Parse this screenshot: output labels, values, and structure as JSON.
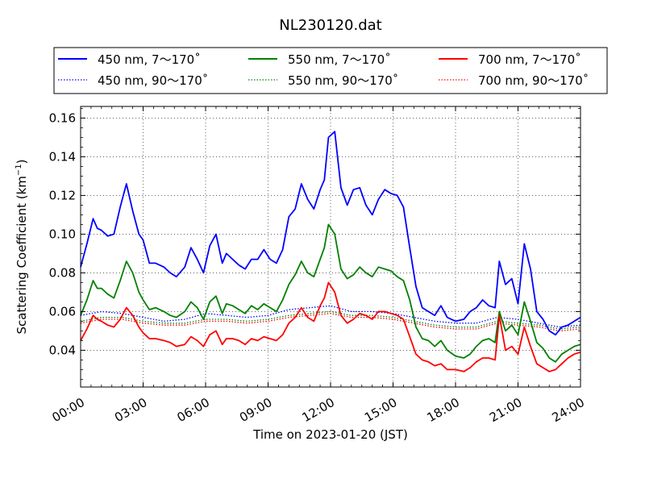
{
  "chart_data": {
    "type": "line",
    "title": "NL230120.dat",
    "xlabel": "Time on 2023-01-20 (JST)",
    "ylabel_main": "Scattering Coefficient (km",
    "ylabel_exp": "−1",
    "ylabel_close": ")",
    "xlim": [
      0,
      24
    ],
    "ylim": [
      0.021,
      0.166
    ],
    "x_ticks": [
      {
        "value": 0,
        "label": "00:00"
      },
      {
        "value": 3,
        "label": "03:00"
      },
      {
        "value": 6,
        "label": "06:00"
      },
      {
        "value": 9,
        "label": "09:00"
      },
      {
        "value": 12,
        "label": "12:00"
      },
      {
        "value": 15,
        "label": "15:00"
      },
      {
        "value": 18,
        "label": "18:00"
      },
      {
        "value": 21,
        "label": "21:00"
      },
      {
        "value": 24,
        "label": "24:00"
      }
    ],
    "y_ticks": [
      {
        "value": 0.04,
        "label": "0.04"
      },
      {
        "value": 0.06,
        "label": "0.06"
      },
      {
        "value": 0.08,
        "label": "0.08"
      },
      {
        "value": 0.1,
        "label": "0.10"
      },
      {
        "value": 0.12,
        "label": "0.12"
      },
      {
        "value": 0.14,
        "label": "0.14"
      },
      {
        "value": 0.16,
        "label": "0.16"
      }
    ],
    "grid": true,
    "legend_position": "top, above plot",
    "series": [
      {
        "name": "450 nm, 7～170˚",
        "color": "#0000ff",
        "style": "solid",
        "x": [
          0,
          0.3,
          0.6,
          0.8,
          1.0,
          1.3,
          1.6,
          1.9,
          2.2,
          2.5,
          2.8,
          3.0,
          3.3,
          3.6,
          4.0,
          4.3,
          4.6,
          5.0,
          5.3,
          5.6,
          5.9,
          6.2,
          6.5,
          6.8,
          7.0,
          7.3,
          7.6,
          7.9,
          8.2,
          8.5,
          8.8,
          9.1,
          9.4,
          9.7,
          10.0,
          10.3,
          10.6,
          10.9,
          11.2,
          11.5,
          11.7,
          11.9,
          12.2,
          12.5,
          12.8,
          13.1,
          13.4,
          13.7,
          14.0,
          14.3,
          14.6,
          14.9,
          15.2,
          15.5,
          15.8,
          16.1,
          16.4,
          16.7,
          17.0,
          17.3,
          17.6,
          18.0,
          18.4,
          18.7,
          19.0,
          19.3,
          19.6,
          19.9,
          20.1,
          20.4,
          20.7,
          21.0,
          21.3,
          21.6,
          21.9,
          22.2,
          22.5,
          22.8,
          23.1,
          23.4,
          23.7,
          24.0
        ],
        "y": [
          0.083,
          0.095,
          0.108,
          0.103,
          0.102,
          0.099,
          0.1,
          0.114,
          0.126,
          0.112,
          0.1,
          0.097,
          0.085,
          0.085,
          0.083,
          0.08,
          0.078,
          0.083,
          0.093,
          0.087,
          0.08,
          0.094,
          0.1,
          0.085,
          0.09,
          0.087,
          0.084,
          0.082,
          0.087,
          0.087,
          0.092,
          0.087,
          0.085,
          0.092,
          0.109,
          0.113,
          0.126,
          0.118,
          0.113,
          0.123,
          0.128,
          0.15,
          0.153,
          0.124,
          0.115,
          0.123,
          0.124,
          0.115,
          0.11,
          0.118,
          0.123,
          0.121,
          0.12,
          0.114,
          0.093,
          0.073,
          0.062,
          0.06,
          0.058,
          0.063,
          0.057,
          0.055,
          0.056,
          0.06,
          0.062,
          0.066,
          0.063,
          0.062,
          0.086,
          0.074,
          0.077,
          0.064,
          0.095,
          0.082,
          0.06,
          0.056,
          0.05,
          0.048,
          0.052,
          0.053,
          0.055,
          0.057
        ]
      },
      {
        "name": "550 nm, 7～170˚",
        "color": "#008000",
        "style": "solid",
        "x": [
          0,
          0.3,
          0.6,
          0.8,
          1.0,
          1.3,
          1.6,
          1.9,
          2.2,
          2.5,
          2.8,
          3.0,
          3.3,
          3.6,
          4.0,
          4.3,
          4.6,
          5.0,
          5.3,
          5.6,
          5.9,
          6.2,
          6.5,
          6.8,
          7.0,
          7.3,
          7.6,
          7.9,
          8.2,
          8.5,
          8.8,
          9.1,
          9.4,
          9.7,
          10.0,
          10.3,
          10.6,
          10.9,
          11.2,
          11.5,
          11.7,
          11.9,
          12.2,
          12.5,
          12.8,
          13.1,
          13.4,
          13.7,
          14.0,
          14.3,
          14.6,
          14.9,
          15.2,
          15.5,
          15.8,
          16.1,
          16.4,
          16.7,
          17.0,
          17.3,
          17.6,
          18.0,
          18.4,
          18.7,
          19.0,
          19.3,
          19.6,
          19.9,
          20.1,
          20.4,
          20.7,
          21.0,
          21.3,
          21.6,
          21.9,
          22.2,
          22.5,
          22.8,
          23.1,
          23.4,
          23.7,
          24.0
        ],
        "y": [
          0.058,
          0.066,
          0.076,
          0.072,
          0.072,
          0.069,
          0.067,
          0.076,
          0.086,
          0.08,
          0.07,
          0.066,
          0.061,
          0.062,
          0.06,
          0.058,
          0.057,
          0.06,
          0.065,
          0.062,
          0.056,
          0.065,
          0.068,
          0.059,
          0.064,
          0.063,
          0.061,
          0.059,
          0.063,
          0.061,
          0.064,
          0.062,
          0.06,
          0.066,
          0.074,
          0.079,
          0.086,
          0.08,
          0.078,
          0.087,
          0.093,
          0.105,
          0.1,
          0.082,
          0.077,
          0.079,
          0.083,
          0.08,
          0.078,
          0.083,
          0.082,
          0.081,
          0.078,
          0.076,
          0.066,
          0.052,
          0.046,
          0.045,
          0.042,
          0.045,
          0.04,
          0.037,
          0.036,
          0.038,
          0.042,
          0.045,
          0.046,
          0.044,
          0.06,
          0.05,
          0.053,
          0.048,
          0.065,
          0.055,
          0.044,
          0.041,
          0.036,
          0.034,
          0.038,
          0.04,
          0.042,
          0.043
        ]
      },
      {
        "name": "700 nm, 7～170˚",
        "color": "#ff0000",
        "style": "solid",
        "x": [
          0,
          0.3,
          0.6,
          0.8,
          1.0,
          1.3,
          1.6,
          1.9,
          2.2,
          2.5,
          2.8,
          3.0,
          3.3,
          3.6,
          4.0,
          4.3,
          4.6,
          5.0,
          5.3,
          5.6,
          5.9,
          6.2,
          6.5,
          6.8,
          7.0,
          7.3,
          7.6,
          7.9,
          8.2,
          8.5,
          8.8,
          9.1,
          9.4,
          9.7,
          10.0,
          10.3,
          10.6,
          10.9,
          11.2,
          11.5,
          11.7,
          11.9,
          12.2,
          12.5,
          12.8,
          13.1,
          13.4,
          13.7,
          14.0,
          14.3,
          14.6,
          14.9,
          15.2,
          15.5,
          15.8,
          16.1,
          16.4,
          16.7,
          17.0,
          17.3,
          17.6,
          18.0,
          18.4,
          18.7,
          19.0,
          19.3,
          19.6,
          19.9,
          20.1,
          20.4,
          20.7,
          21.0,
          21.3,
          21.6,
          21.9,
          22.2,
          22.5,
          22.8,
          23.1,
          23.4,
          23.7,
          24.0
        ],
        "y": [
          0.045,
          0.051,
          0.058,
          0.056,
          0.055,
          0.053,
          0.052,
          0.056,
          0.062,
          0.058,
          0.052,
          0.049,
          0.046,
          0.046,
          0.045,
          0.044,
          0.042,
          0.043,
          0.047,
          0.045,
          0.042,
          0.048,
          0.05,
          0.043,
          0.046,
          0.046,
          0.045,
          0.043,
          0.046,
          0.045,
          0.047,
          0.046,
          0.045,
          0.048,
          0.054,
          0.057,
          0.062,
          0.057,
          0.055,
          0.063,
          0.067,
          0.075,
          0.07,
          0.058,
          0.054,
          0.056,
          0.059,
          0.058,
          0.056,
          0.06,
          0.06,
          0.059,
          0.058,
          0.056,
          0.047,
          0.038,
          0.035,
          0.034,
          0.032,
          0.033,
          0.03,
          0.03,
          0.029,
          0.031,
          0.034,
          0.036,
          0.036,
          0.035,
          0.058,
          0.04,
          0.042,
          0.038,
          0.052,
          0.042,
          0.033,
          0.031,
          0.029,
          0.03,
          0.033,
          0.036,
          0.038,
          0.039
        ]
      },
      {
        "name": "450 nm, 90～170˚",
        "color": "#0000ff",
        "style": "dotted",
        "x": [
          0,
          1,
          2,
          3,
          4,
          5,
          6,
          7,
          8,
          9,
          10,
          11,
          12,
          13,
          14,
          15,
          16,
          17,
          18,
          19,
          20,
          21,
          22,
          23,
          24
        ],
        "y": [
          0.058,
          0.06,
          0.059,
          0.057,
          0.055,
          0.056,
          0.059,
          0.058,
          0.057,
          0.058,
          0.061,
          0.062,
          0.063,
          0.06,
          0.06,
          0.059,
          0.057,
          0.055,
          0.054,
          0.054,
          0.057,
          0.056,
          0.054,
          0.052,
          0.053
        ]
      },
      {
        "name": "550 nm, 90～170˚",
        "color": "#008000",
        "style": "dotted",
        "x": [
          0,
          1,
          2,
          3,
          4,
          5,
          6,
          7,
          8,
          9,
          10,
          11,
          12,
          13,
          14,
          15,
          16,
          17,
          18,
          19,
          20,
          21,
          22,
          23,
          24
        ],
        "y": [
          0.055,
          0.057,
          0.057,
          0.055,
          0.054,
          0.054,
          0.056,
          0.056,
          0.055,
          0.056,
          0.058,
          0.059,
          0.06,
          0.058,
          0.058,
          0.057,
          0.055,
          0.053,
          0.052,
          0.052,
          0.055,
          0.054,
          0.053,
          0.051,
          0.052
        ]
      },
      {
        "name": "700 nm, 90～170˚",
        "color": "#ff0000",
        "style": "dotted",
        "x": [
          0,
          1,
          2,
          3,
          4,
          5,
          6,
          7,
          8,
          9,
          10,
          11,
          12,
          13,
          14,
          15,
          16,
          17,
          18,
          19,
          20,
          21,
          22,
          23,
          24
        ],
        "y": [
          0.054,
          0.056,
          0.056,
          0.054,
          0.053,
          0.053,
          0.055,
          0.055,
          0.054,
          0.055,
          0.057,
          0.058,
          0.059,
          0.057,
          0.057,
          0.056,
          0.054,
          0.052,
          0.051,
          0.051,
          0.054,
          0.053,
          0.052,
          0.05,
          0.051
        ]
      }
    ]
  }
}
